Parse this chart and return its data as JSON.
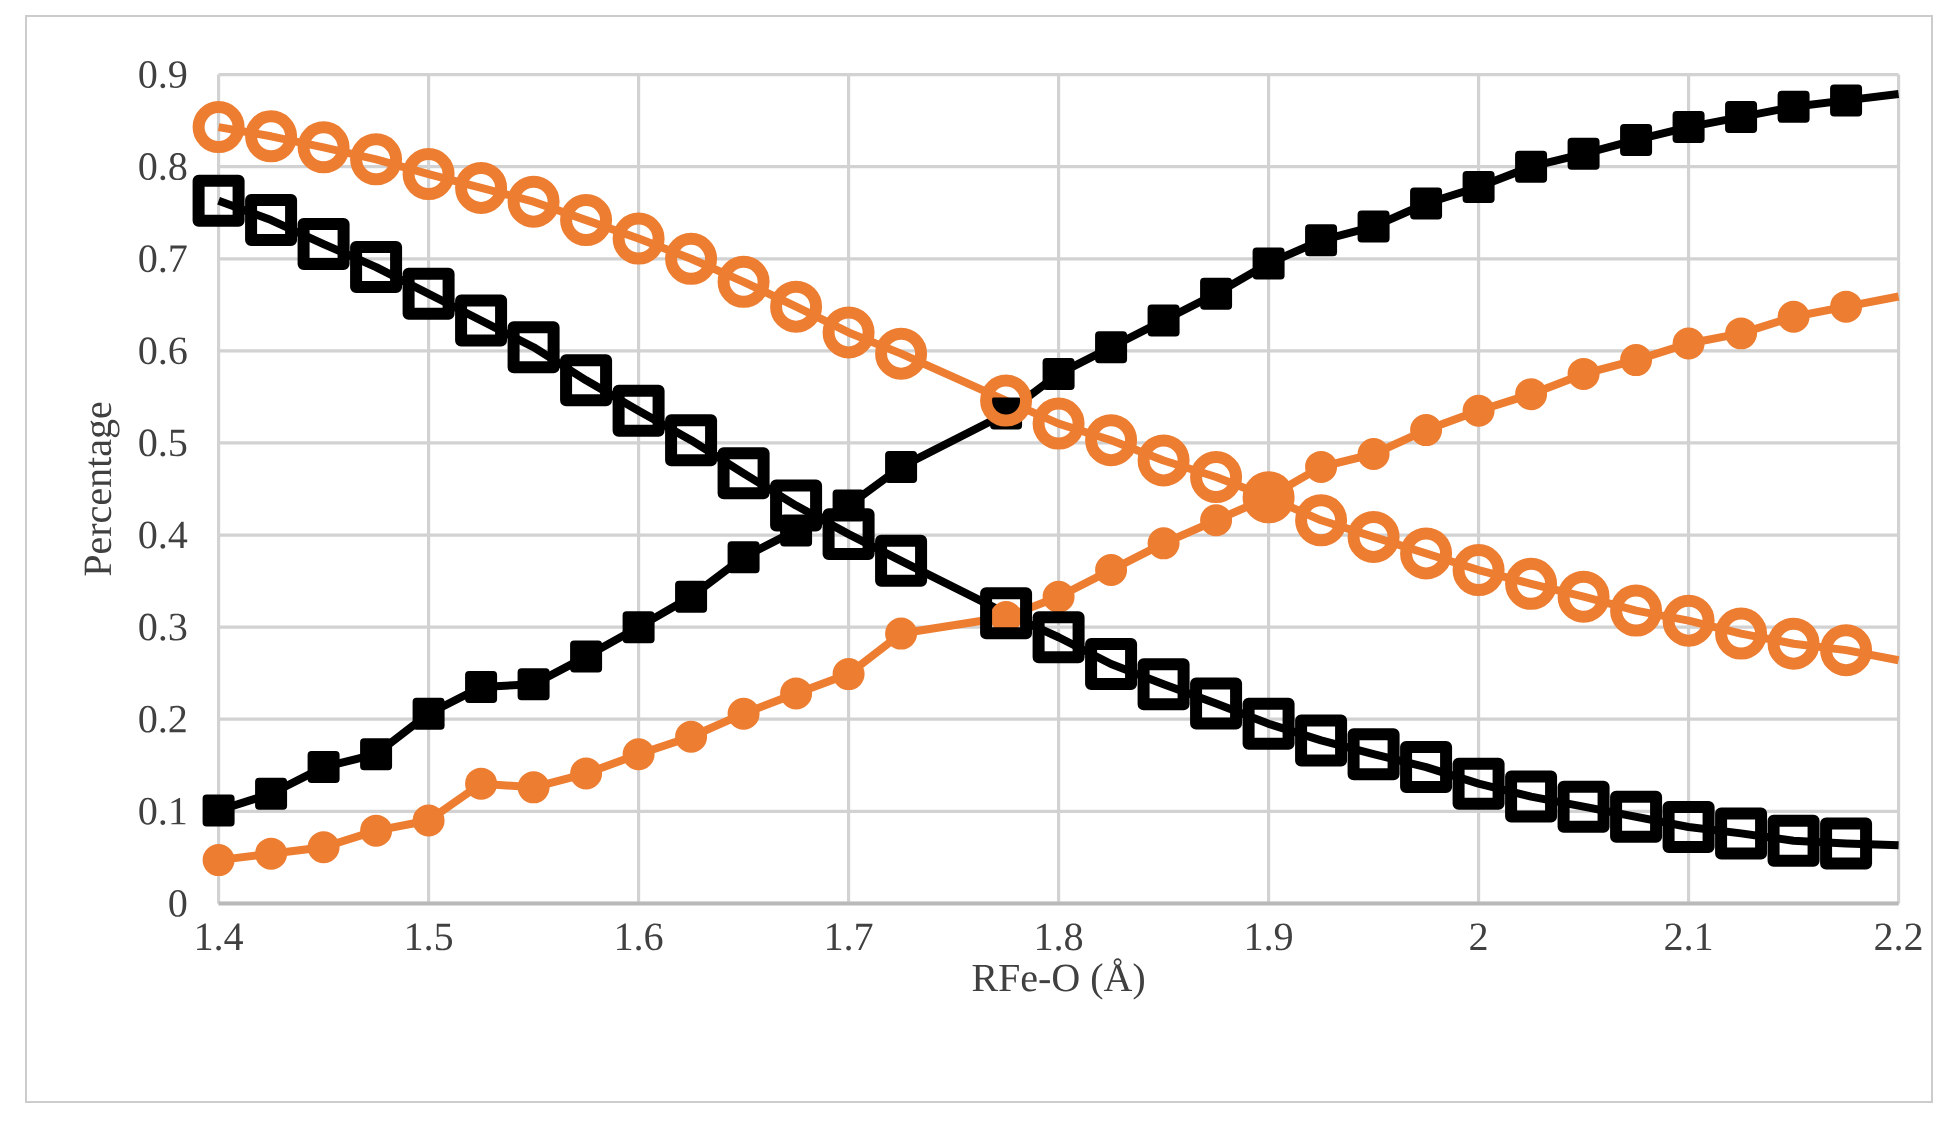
{
  "chart_data": {
    "type": "line",
    "xlabel": "RFe-O (Å)",
    "ylabel": "Percentage",
    "x": [
      1.4,
      1.425,
      1.45,
      1.475,
      1.5,
      1.525,
      1.55,
      1.575,
      1.6,
      1.625,
      1.65,
      1.675,
      1.7,
      1.725,
      1.775,
      1.8,
      1.825,
      1.85,
      1.875,
      1.9,
      1.925,
      1.95,
      1.975,
      2.0,
      2.025,
      2.05,
      2.075,
      2.1,
      2.125,
      2.15,
      2.175,
      2.2
    ],
    "series": [
      {
        "color": "#000000",
        "marker": "square",
        "values": [
          0.101,
          0.119,
          0.148,
          0.162,
          0.206,
          0.235,
          0.238,
          0.268,
          0.3,
          0.333,
          0.376,
          0.405,
          0.432,
          0.474,
          0.532,
          0.575,
          0.604,
          0.633,
          0.662,
          0.695,
          0.72,
          0.735,
          0.76,
          0.778,
          0.8,
          0.814,
          0.829,
          0.843,
          0.854,
          0.865,
          0.872,
          0.879
        ]
      },
      {
        "color": "#ed7d31",
        "marker": "circle",
        "values": [
          0.047,
          0.054,
          0.061,
          0.079,
          0.09,
          0.13,
          0.126,
          0.141,
          0.162,
          0.181,
          0.206,
          0.228,
          0.249,
          0.293,
          0.311,
          0.333,
          0.362,
          0.391,
          0.416,
          0.441,
          0.474,
          0.488,
          0.514,
          0.535,
          0.553,
          0.575,
          0.59,
          0.608,
          0.619,
          0.637,
          0.648,
          0.659
        ]
      },
      {
        "color": "#ed7d31",
        "marker": "circle",
        "values": [
          0.843,
          0.833,
          0.821,
          0.808,
          0.792,
          0.777,
          0.762,
          0.742,
          0.722,
          0.7,
          0.675,
          0.648,
          0.62,
          0.597,
          0.546,
          0.521,
          0.503,
          0.481,
          0.463,
          0.441,
          0.416,
          0.398,
          0.38,
          0.362,
          0.347,
          0.333,
          0.318,
          0.307,
          0.293,
          0.282,
          0.275,
          0.264
        ]
      },
      {
        "color": "#000000",
        "marker": "square",
        "values": [
          0.763,
          0.742,
          0.716,
          0.691,
          0.662,
          0.633,
          0.604,
          0.568,
          0.535,
          0.503,
          0.467,
          0.432,
          0.401,
          0.372,
          0.315,
          0.289,
          0.26,
          0.238,
          0.217,
          0.195,
          0.177,
          0.162,
          0.148,
          0.13,
          0.116,
          0.105,
          0.094,
          0.083,
          0.076,
          0.068,
          0.065,
          0.063
        ]
      }
    ],
    "xlim": [
      1.4,
      2.2
    ],
    "xticks": [
      1.4,
      1.5,
      1.6,
      1.7,
      1.8,
      1.9,
      2,
      2.1,
      2.2
    ],
    "ylim": [
      0,
      0.9
    ],
    "yticks": [
      0,
      0.1,
      0.2,
      0.3,
      0.4,
      0.5,
      0.6,
      0.7,
      0.8,
      0.9
    ],
    "grid": true
  }
}
